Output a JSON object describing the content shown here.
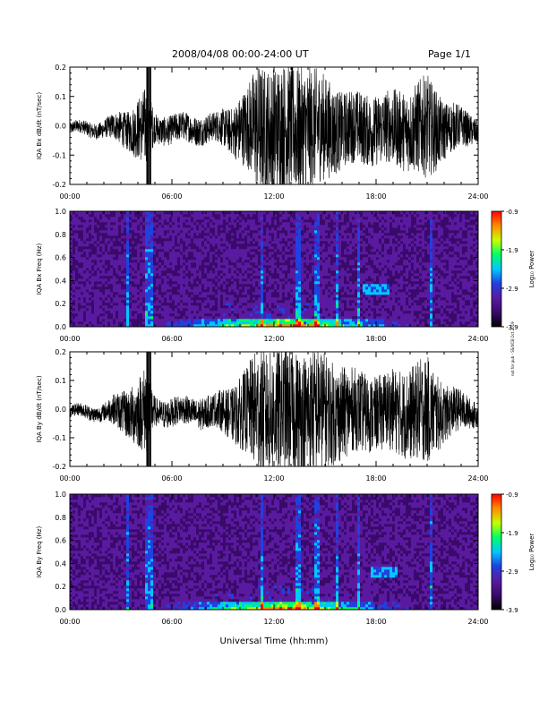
{
  "header": {
    "title": "2008/04/08  00:00-24:00 UT",
    "page": "Page 1/1"
  },
  "side_note": "not for pub - SS/UCB Oct 2019",
  "x_axis_title": "Universal Time (hh:mm)",
  "colors": {
    "trace": "#000000",
    "colormap": [
      "#000000",
      "#3a0a6a",
      "#5a1aa0",
      "#2040e0",
      "#00c8ff",
      "#00ff66",
      "#c8ff00",
      "#ff8c00",
      "#ff0000"
    ]
  },
  "chart_data": [
    {
      "type": "line",
      "ylabel": "IQA Bx dB/dt (nT/sec)",
      "xlim": [
        0,
        24
      ],
      "ylim": [
        -0.2,
        0.2
      ],
      "xticks": [
        "00:00",
        "06:00",
        "12:00",
        "18:00",
        "24:00"
      ],
      "yticks": [
        "-0.2",
        "-0.1",
        "0.0",
        "0.1",
        "0.2"
      ],
      "ytick_values": [
        -0.2,
        -0.1,
        0.0,
        0.1,
        0.2
      ],
      "envelope": [
        {
          "t": 0,
          "a": 0.02
        },
        {
          "t": 2,
          "a": 0.03
        },
        {
          "t": 3.5,
          "a": 0.07
        },
        {
          "t": 4.5,
          "a": 0.14
        },
        {
          "t": 5,
          "a": 0.05
        },
        {
          "t": 7,
          "a": 0.05
        },
        {
          "t": 8.5,
          "a": 0.05
        },
        {
          "t": 9.5,
          "a": 0.08
        },
        {
          "t": 10.5,
          "a": 0.15
        },
        {
          "t": 11,
          "a": 0.22
        },
        {
          "t": 14,
          "a": 0.22
        },
        {
          "t": 15,
          "a": 0.18
        },
        {
          "t": 16,
          "a": 0.13
        },
        {
          "t": 18,
          "a": 0.12
        },
        {
          "t": 20,
          "a": 0.14
        },
        {
          "t": 21,
          "a": 0.18
        },
        {
          "t": 22,
          "a": 0.1
        },
        {
          "t": 24,
          "a": 0.04
        }
      ],
      "spikes": [
        {
          "t": 4.55,
          "a": 0.25
        },
        {
          "t": 4.7,
          "a": 0.25
        }
      ]
    },
    {
      "type": "heatmap",
      "ylabel": "IQA Bx Freq (Hz)",
      "colorbar_label": "Log₁₀ Power",
      "xlim": [
        0,
        24
      ],
      "ylim": [
        0,
        1.0
      ],
      "xticks": [
        "00:00",
        "06:00",
        "12:00",
        "18:00",
        "24:00"
      ],
      "yticks": [
        "0.0",
        "0.2",
        "0.4",
        "0.6",
        "0.8",
        "1.0"
      ],
      "ytick_values": [
        0.0,
        0.2,
        0.4,
        0.6,
        0.8,
        1.0
      ],
      "zlim": [
        -3.9,
        -0.9
      ],
      "colorbar_ticks": [
        "-0.9",
        "-1.9",
        "-2.9",
        "-3.9"
      ],
      "colorbar_tick_values": [
        -0.9,
        -1.9,
        -2.9,
        -3.9
      ],
      "bright_columns": [
        3.4,
        4.5,
        4.7,
        11.3,
        13.4,
        14.5,
        15.7,
        17.0,
        21.2
      ],
      "features": [
        {
          "t": 18.0,
          "f": 0.32
        }
      ]
    },
    {
      "type": "line",
      "ylabel": "IQA By dB/dt (nT/sec)",
      "xlim": [
        0,
        24
      ],
      "ylim": [
        -0.2,
        0.2
      ],
      "xticks": [
        "00:00",
        "06:00",
        "12:00",
        "18:00",
        "24:00"
      ],
      "yticks": [
        "-0.2",
        "-0.1",
        "0.0",
        "0.1",
        "0.2"
      ],
      "ytick_values": [
        -0.2,
        -0.1,
        0.0,
        0.1,
        0.2
      ],
      "envelope": [
        {
          "t": 0,
          "a": 0.02
        },
        {
          "t": 2,
          "a": 0.03
        },
        {
          "t": 3.5,
          "a": 0.09
        },
        {
          "t": 4.5,
          "a": 0.16
        },
        {
          "t": 5,
          "a": 0.05
        },
        {
          "t": 7,
          "a": 0.05
        },
        {
          "t": 8.5,
          "a": 0.06
        },
        {
          "t": 9.5,
          "a": 0.09
        },
        {
          "t": 10.5,
          "a": 0.16
        },
        {
          "t": 11,
          "a": 0.22
        },
        {
          "t": 14.5,
          "a": 0.22
        },
        {
          "t": 15.5,
          "a": 0.18
        },
        {
          "t": 16.5,
          "a": 0.15
        },
        {
          "t": 18,
          "a": 0.13
        },
        {
          "t": 20,
          "a": 0.16
        },
        {
          "t": 21,
          "a": 0.19
        },
        {
          "t": 22,
          "a": 0.1
        },
        {
          "t": 24,
          "a": 0.04
        }
      ],
      "spikes": [
        {
          "t": 4.55,
          "a": 0.25
        },
        {
          "t": 4.7,
          "a": 0.25
        }
      ]
    },
    {
      "type": "heatmap",
      "ylabel": "IQA By Freq (Hz)",
      "colorbar_label": "Log₁₀ Power",
      "xlim": [
        0,
        24
      ],
      "ylim": [
        0,
        1.0
      ],
      "xticks": [
        "00:00",
        "06:00",
        "12:00",
        "18:00",
        "24:00"
      ],
      "yticks": [
        "0.0",
        "0.2",
        "0.4",
        "0.6",
        "0.8",
        "1.0"
      ],
      "ytick_values": [
        0.0,
        0.2,
        0.4,
        0.6,
        0.8,
        1.0
      ],
      "zlim": [
        -3.9,
        -0.9
      ],
      "colorbar_ticks": [
        "-0.9",
        "-1.9",
        "-2.9",
        "-3.9"
      ],
      "colorbar_tick_values": [
        -0.9,
        -1.9,
        -2.9,
        -3.9
      ],
      "bright_columns": [
        3.4,
        4.5,
        4.7,
        11.3,
        13.4,
        14.5,
        15.7,
        17.0,
        21.2
      ],
      "features": [
        {
          "t": 18.5,
          "f": 0.32
        }
      ]
    }
  ]
}
